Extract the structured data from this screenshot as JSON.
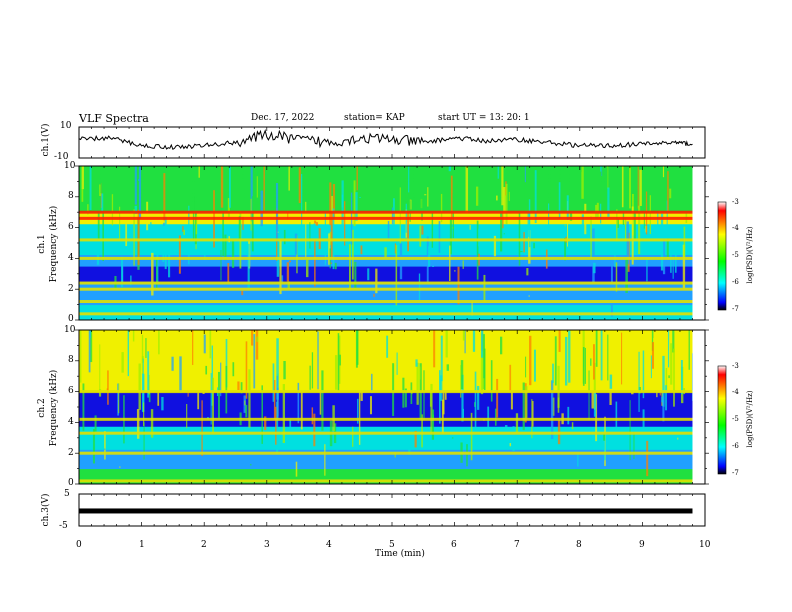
{
  "header": {
    "title": "VLF Spectra",
    "date": "Dec. 17, 2022",
    "station": "station= KAP",
    "start": "start  UT  =   13: 20: 1"
  },
  "panels": {
    "ch1_voltage": {
      "ylabel": "ch.1(V)",
      "yticks": [
        "10",
        "-10"
      ]
    },
    "ch1_spectrogram": {
      "ylabel_line1": "ch.1",
      "ylabel_line2": "Frequency  (kHz)",
      "yticks": [
        "10",
        "8",
        "6",
        "4",
        "2",
        "0"
      ]
    },
    "ch2_spectrogram": {
      "ylabel_line1": "ch.2",
      "ylabel_line2": "Frequency  (kHz)",
      "yticks": [
        "10",
        "8",
        "6",
        "4",
        "2",
        "0"
      ]
    },
    "ch3_voltage": {
      "ylabel": "ch.3(V)",
      "yticks": [
        "5",
        "-5"
      ]
    }
  },
  "xaxis": {
    "label": "Time  (min)",
    "ticks": [
      "0",
      "1",
      "2",
      "3",
      "4",
      "5",
      "6",
      "7",
      "8",
      "9",
      "10"
    ]
  },
  "colorbar": {
    "label": "log(PSD)(V²/Hz)",
    "ticks": [
      "-3",
      "-4",
      "-5",
      "-6",
      "-7"
    ]
  },
  "colors": {
    "low": "#0000ff",
    "mid": "#00ff00",
    "high": "#ff0000",
    "trace": "#000000"
  },
  "chart_data": [
    {
      "type": "line",
      "title": "VLF Spectra",
      "xlabel": "Time  (min)",
      "ylabel": "ch.1(V)",
      "xlim": [
        0,
        10
      ],
      "ylim": [
        -10,
        10
      ],
      "x": [
        0,
        0.5,
        1,
        1.5,
        2,
        2.5,
        3,
        3.5,
        4,
        4.5,
        5,
        5.5,
        6,
        6.5,
        7,
        7.5,
        8,
        8.5,
        9,
        9.5,
        9.8
      ],
      "y": [
        2,
        3,
        -2,
        -3,
        -2,
        0,
        5,
        2,
        0,
        3,
        2,
        0,
        3,
        1,
        2,
        0,
        -2,
        -2,
        -1,
        0,
        -1
      ]
    },
    {
      "type": "heatmap",
      "ylabel": "Frequency  (kHz)",
      "xlim": [
        0,
        10
      ],
      "ylim": [
        0,
        10
      ],
      "bands_khz": [
        0.4,
        1.2,
        2.0,
        2.4,
        4.0,
        5.2,
        6.6,
        7.0
      ],
      "zlabel": "log(PSD)(V²/Hz)",
      "zlim": [
        -7,
        -3
      ]
    },
    {
      "type": "heatmap",
      "ylabel": "Frequency  (kHz)",
      "xlim": [
        0,
        10
      ],
      "ylim": [
        0,
        10
      ],
      "bands_khz": [
        0.2,
        2.0,
        3.3,
        4.2,
        6.0
      ],
      "zlabel": "log(PSD)(V²/Hz)",
      "zlim": [
        -7,
        -3
      ]
    },
    {
      "type": "line",
      "xlabel": "Time  (min)",
      "ylabel": "ch.3(V)",
      "xlim": [
        0,
        10
      ],
      "ylim": [
        -5,
        5
      ],
      "x": [
        0,
        9.8
      ],
      "y": [
        -0.3,
        -0.3
      ]
    }
  ]
}
